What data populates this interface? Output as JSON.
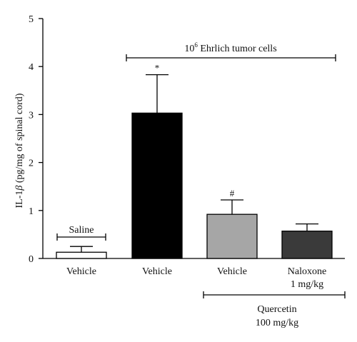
{
  "chart_data": {
    "type": "bar",
    "ylabel_prefix": "IL-1",
    "ylabel_symbol": "β",
    "ylabel_suffix": " (pg/mg of spinal cord)",
    "ylim": [
      0,
      5
    ],
    "yticks": [
      "0",
      "1",
      "2",
      "3",
      "4",
      "5"
    ],
    "categories": [
      "Vehicle",
      "Vehicle",
      "Vehicle",
      "Naloxone"
    ],
    "category_sublabels": [
      "",
      "",
      "",
      "1 mg/kg"
    ],
    "values": [
      0.13,
      3.03,
      0.92,
      0.57
    ],
    "errors": [
      0.12,
      0.8,
      0.3,
      0.15
    ],
    "colors": [
      "#ffffff",
      "#000000",
      "#a6a6a6",
      "#3a3a3a"
    ],
    "markers": [
      "",
      "*",
      "#",
      ""
    ],
    "groups": {
      "saline": "Saline",
      "tumor_base": "10",
      "tumor_exp": "6",
      "tumor_text": " Ehrlich tumor cells",
      "quercetin_line1": "Quercetin",
      "quercetin_line2": "100 mg/kg"
    }
  }
}
